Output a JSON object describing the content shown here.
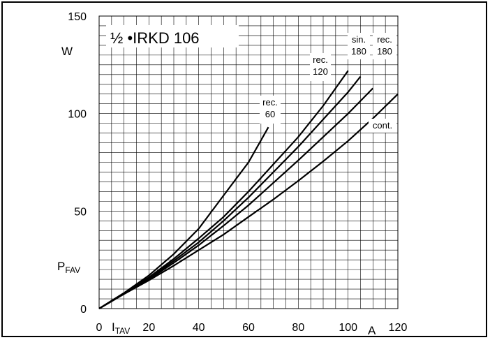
{
  "chart_data": {
    "type": "line",
    "title": "½ •IRKD 106",
    "xlabel_main": "I",
    "xlabel_sub": "TAV",
    "xunit": "A",
    "ylabel_main": "P",
    "ylabel_sub": "FAV",
    "yunit": "W",
    "xlim": [
      0,
      120
    ],
    "ylim": [
      0,
      150
    ],
    "x_ticks": [
      "0",
      "20",
      "40",
      "60",
      "80",
      "100",
      "120"
    ],
    "y_ticks": [
      "0",
      "50",
      "100",
      "150"
    ],
    "grid": true,
    "series": [
      {
        "label": "rec. 60",
        "label_lines": [
          "rec.",
          "60"
        ],
        "points": [
          [
            0,
            0
          ],
          [
            10,
            8
          ],
          [
            20,
            17
          ],
          [
            30,
            28
          ],
          [
            40,
            41
          ],
          [
            50,
            58
          ],
          [
            60,
            75
          ],
          [
            68,
            93
          ]
        ]
      },
      {
        "label": "rec. 120",
        "label_lines": [
          "rec.",
          "120"
        ],
        "points": [
          [
            0,
            0
          ],
          [
            10,
            8
          ],
          [
            20,
            16
          ],
          [
            30,
            25.5
          ],
          [
            40,
            36
          ],
          [
            50,
            47
          ],
          [
            60,
            60
          ],
          [
            70,
            74
          ],
          [
            80,
            88
          ],
          [
            90,
            104
          ],
          [
            100,
            122
          ]
        ]
      },
      {
        "label": "sin. 180",
        "label_lines": [
          "sin.",
          "180"
        ],
        "points": [
          [
            0,
            0
          ],
          [
            10,
            8
          ],
          [
            20,
            15.5
          ],
          [
            30,
            24.5
          ],
          [
            40,
            34
          ],
          [
            50,
            45
          ],
          [
            60,
            57
          ],
          [
            70,
            70
          ],
          [
            80,
            83
          ],
          [
            90,
            97
          ],
          [
            100,
            111
          ],
          [
            105,
            119
          ]
        ]
      },
      {
        "label": "rec. 180",
        "label_lines": [
          "rec.",
          "180"
        ],
        "points": [
          [
            0,
            0
          ],
          [
            10,
            7.5
          ],
          [
            20,
            15
          ],
          [
            30,
            23.5
          ],
          [
            40,
            32.5
          ],
          [
            50,
            42.5
          ],
          [
            60,
            53
          ],
          [
            70,
            64.5
          ],
          [
            80,
            76
          ],
          [
            90,
            88
          ],
          [
            100,
            100
          ],
          [
            110,
            113
          ]
        ]
      },
      {
        "label": "cont.",
        "label_lines": [
          "cont."
        ],
        "points": [
          [
            0,
            0
          ],
          [
            10,
            7.5
          ],
          [
            20,
            14.5
          ],
          [
            30,
            22
          ],
          [
            40,
            30
          ],
          [
            50,
            38
          ],
          [
            60,
            47
          ],
          [
            70,
            56
          ],
          [
            80,
            65.5
          ],
          [
            90,
            75.5
          ],
          [
            100,
            86
          ],
          [
            110,
            97.5
          ],
          [
            120,
            110
          ]
        ]
      }
    ]
  }
}
